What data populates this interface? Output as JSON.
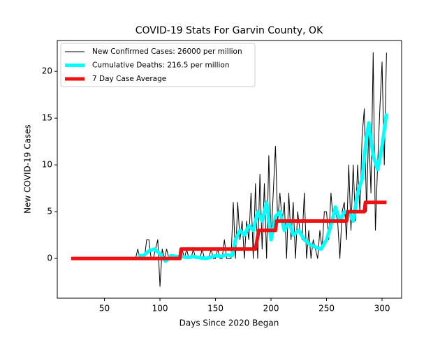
{
  "chart_data": {
    "type": "line",
    "title": "COVID-19 Stats For Garvin County, OK",
    "xlabel": "Days Since 2020 Began",
    "ylabel": "New COVID-19 Cases",
    "xlim": [
      7.5,
      317.6
    ],
    "ylim": [
      -4.25,
      23.3
    ],
    "xticks": [
      50,
      100,
      150,
      200,
      250,
      300
    ],
    "yticks": [
      0,
      5,
      10,
      15,
      20
    ],
    "legend": "upper left",
    "series": [
      {
        "name": "New Confirmed Cases: 26000 per million",
        "color": "#000000",
        "linewidth": 1,
        "x": [
          78,
          80,
          82,
          84,
          86,
          88,
          90,
          92,
          94,
          96,
          98,
          100,
          102,
          104,
          106,
          108,
          110,
          112,
          114,
          116,
          118,
          120,
          122,
          124,
          126,
          128,
          130,
          132,
          134,
          136,
          138,
          140,
          142,
          144,
          146,
          148,
          150,
          152,
          154,
          156,
          158,
          160,
          162,
          164,
          166,
          168,
          170,
          172,
          174,
          176,
          178,
          180,
          182,
          184,
          186,
          188,
          190,
          192,
          194,
          196,
          198,
          200,
          202,
          204,
          206,
          208,
          210,
          212,
          214,
          216,
          218,
          220,
          222,
          224,
          226,
          228,
          230,
          232,
          234,
          236,
          238,
          240,
          242,
          244,
          246,
          248,
          250,
          252,
          254,
          256,
          258,
          260,
          262,
          264,
          266,
          268,
          270,
          272,
          274,
          276,
          278,
          280,
          282,
          284,
          286,
          288,
          290,
          292,
          294,
          296,
          298,
          300,
          302,
          304
        ],
        "values": [
          0,
          1,
          0,
          0,
          0,
          2,
          2,
          0,
          0,
          1,
          2,
          -3,
          1,
          0,
          1,
          0,
          0,
          0,
          0,
          0,
          0,
          1,
          0,
          1,
          0,
          0,
          1,
          0,
          0,
          0,
          1,
          0,
          0,
          0,
          1,
          0,
          0,
          1,
          0,
          0,
          2,
          0,
          0,
          0,
          6,
          0,
          6,
          2,
          4,
          0,
          4,
          2,
          7,
          0,
          8,
          0,
          9,
          1,
          8,
          0,
          11,
          2,
          7,
          12,
          4,
          7,
          4,
          6,
          0,
          7,
          2,
          6,
          0,
          5,
          3,
          2,
          7,
          0,
          3,
          0,
          2,
          1,
          0,
          3,
          1,
          5,
          5,
          2,
          7,
          4,
          5,
          4,
          0,
          5,
          6,
          2,
          10,
          3,
          10,
          4,
          10,
          5,
          13,
          16,
          5,
          14,
          7,
          22,
          3,
          10,
          16,
          21,
          10,
          22
        ]
      },
      {
        "name": "Cumulative Deaths: 216.5 per million",
        "color": "#00ffff",
        "linewidth": 5,
        "x": [
          80,
          85,
          90,
          95,
          100,
          105,
          110,
          115,
          120,
          125,
          130,
          135,
          140,
          145,
          150,
          155,
          160,
          165,
          168,
          172,
          176,
          180,
          184,
          188,
          192,
          196,
          200,
          204,
          208,
          212,
          216,
          220,
          225,
          230,
          235,
          240,
          245,
          250,
          255,
          258,
          262,
          266,
          270,
          274,
          278,
          282,
          286,
          288,
          292,
          296,
          300,
          304
        ],
        "values": [
          0.3,
          0.3,
          0.8,
          1,
          0.5,
          -0.3,
          0.3,
          0.2,
          0.2,
          0.1,
          0.2,
          0.1,
          0,
          0.1,
          0.3,
          0.2,
          0.4,
          0.3,
          2,
          3,
          2.5,
          3.5,
          3,
          5,
          4,
          6,
          2,
          4.5,
          5,
          3,
          4,
          2.5,
          3,
          2,
          1.5,
          1.2,
          1,
          2,
          4,
          5.5,
          4,
          5,
          5,
          4,
          7,
          8.5,
          13,
          14.5,
          11,
          9.5,
          12,
          15.5
        ]
      },
      {
        "name": "7 Day Case Average",
        "color": "#ee1111",
        "linewidth": 5,
        "x": [
          20,
          118,
          119,
          186,
          189,
          204,
          205,
          268,
          269,
          284,
          285,
          304
        ],
        "values": [
          0,
          0,
          1,
          1,
          3,
          3,
          4,
          4,
          5,
          5,
          6,
          6
        ]
      }
    ]
  }
}
